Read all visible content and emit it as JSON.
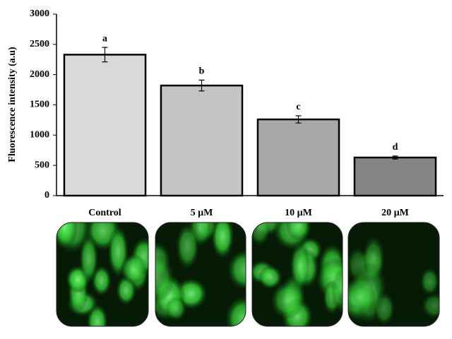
{
  "chart_data": {
    "type": "bar",
    "y_label": "Fluorescence intensity (a.u)",
    "categories": [
      "Control",
      "5 µM",
      "10 µM",
      "20 µM"
    ],
    "values": [
      2330,
      1820,
      1260,
      630
    ],
    "errors": [
      120,
      90,
      60,
      25
    ],
    "significance_labels": [
      "a",
      "b",
      "c",
      "d"
    ],
    "colors": [
      "#d9d9d9",
      "#c4c4c4",
      "#a8a8a8",
      "#858585"
    ],
    "ylim": [
      0,
      3000
    ],
    "yticks": [
      0,
      500,
      1000,
      1500,
      2000,
      2500,
      3000
    ],
    "grid": false
  }
}
